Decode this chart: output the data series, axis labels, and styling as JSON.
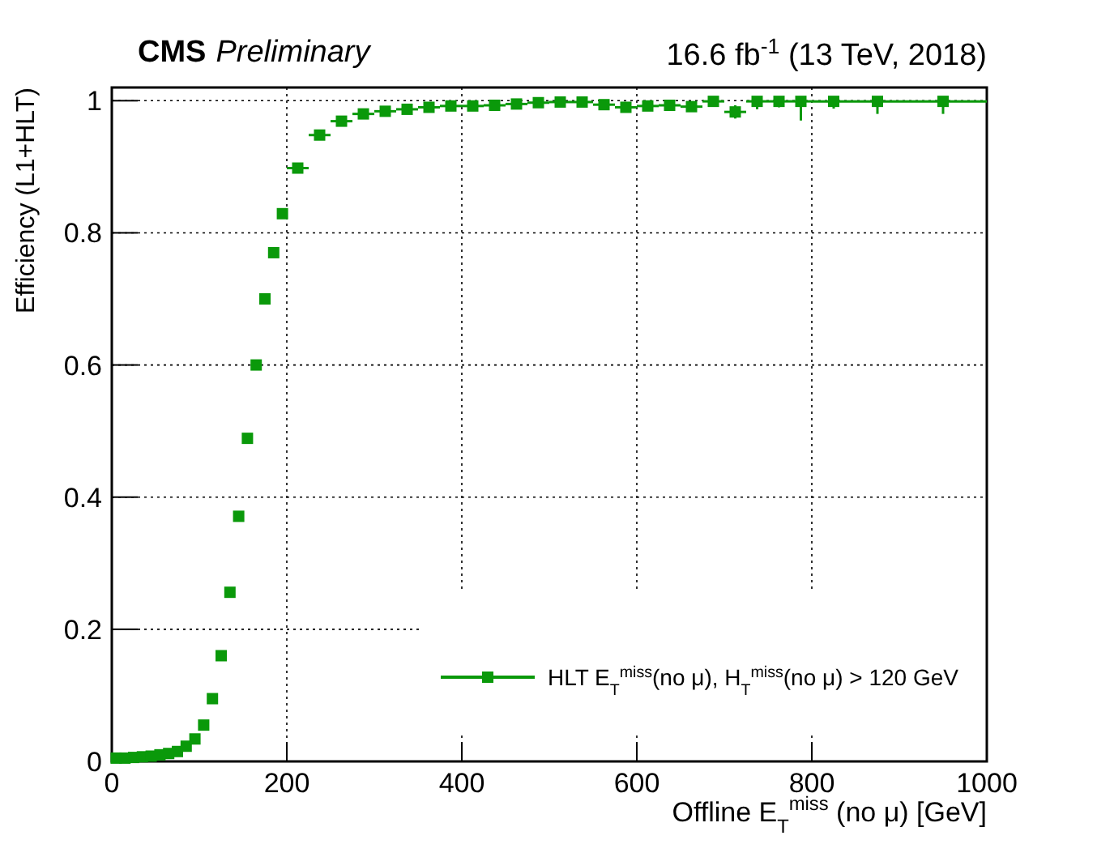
{
  "chart_data": {
    "type": "scatter",
    "title": "16.6 fb$^{-1}$  (13 TeV, 2018)",
    "annotations": [
      "CMS Preliminary"
    ],
    "xlabel": "Offline E$_{T}$$^{miss}$ (no μ) [GeV]",
    "ylabel": "Efficiency (L1+HLT)",
    "xlim": [
      0,
      1000
    ],
    "xticks": [
      0,
      200,
      400,
      600,
      800,
      1000
    ],
    "ylim": [
      0,
      1.02
    ],
    "yticks": [
      0,
      {
        "value": 0.2,
        "label": "0.2"
      },
      {
        "value": 0.4,
        "label": "0.4"
      },
      {
        "value": 0.6,
        "label": "0.6"
      },
      {
        "value": 0.8,
        "label": "0.8"
      },
      1
    ],
    "grid": true,
    "legend": "bottom right",
    "marker": "square",
    "series": [
      {
        "name": "HLT E$_{T}$$^{miss}$(no μ), H$_{T}$$^{miss}$(no μ) > 120 GeV",
        "color": "#0a990a",
        "x": [
          5,
          15,
          25,
          35,
          45,
          55,
          65,
          75,
          85,
          95,
          105,
          115,
          125,
          135,
          145,
          155,
          165,
          175,
          185,
          195,
          212.5,
          237.5,
          262.5,
          287.5,
          312.5,
          337.5,
          362.5,
          387.5,
          412.5,
          437.5,
          462.5,
          487.5,
          512.5,
          537.5,
          562.5,
          587.5,
          612.5,
          637.5,
          662.5,
          687.5,
          712.5,
          737.5,
          762.5,
          787.5,
          825,
          875,
          950
        ],
        "values": [
          0.005,
          0.005,
          0.006,
          0.007,
          0.008,
          0.01,
          0.012,
          0.015,
          0.023,
          0.034,
          0.055,
          0.095,
          0.16,
          0.256,
          0.371,
          0.489,
          0.6,
          0.7,
          0.77,
          0.829,
          0.898,
          0.948,
          0.969,
          0.98,
          0.984,
          0.987,
          0.99,
          0.992,
          0.992,
          0.993,
          0.995,
          0.997,
          0.998,
          0.998,
          0.994,
          0.99,
          0.992,
          0.993,
          0.991,
          0.999,
          0.983,
          0.999,
          0.999,
          0.999,
          0.999,
          0.999,
          0.999
        ],
        "errors": [
          null,
          null,
          null,
          null,
          null,
          null,
          null,
          null,
          null,
          null,
          null,
          null,
          null,
          null,
          null,
          null,
          null,
          null,
          null,
          null,
          null,
          null,
          null,
          null,
          null,
          null,
          null,
          null,
          null,
          null,
          null,
          null,
          null,
          null,
          null,
          null,
          null,
          null,
          null,
          null,
          [
            0.973,
            0.993
          ],
          [
            0.987,
            1
          ],
          [
            0.99,
            1
          ],
          [
            0.97,
            1
          ],
          [
            0.988,
            1
          ],
          [
            0.98,
            1
          ],
          [
            0.98,
            1
          ]
        ],
        "xerrors": [
          5,
          5,
          5,
          5,
          5,
          5,
          5,
          5,
          5,
          5,
          5,
          5,
          5,
          5,
          5,
          5,
          5,
          5,
          5,
          5,
          12.5,
          12.5,
          12.5,
          12.5,
          12.5,
          12.5,
          12.5,
          12.5,
          12.5,
          12.5,
          12.5,
          12.5,
          12.5,
          12.5,
          12.5,
          12.5,
          12.5,
          12.5,
          12.5,
          12.5,
          12.5,
          12.5,
          12.5,
          12.5,
          25,
          25,
          50
        ]
      }
    ]
  }
}
